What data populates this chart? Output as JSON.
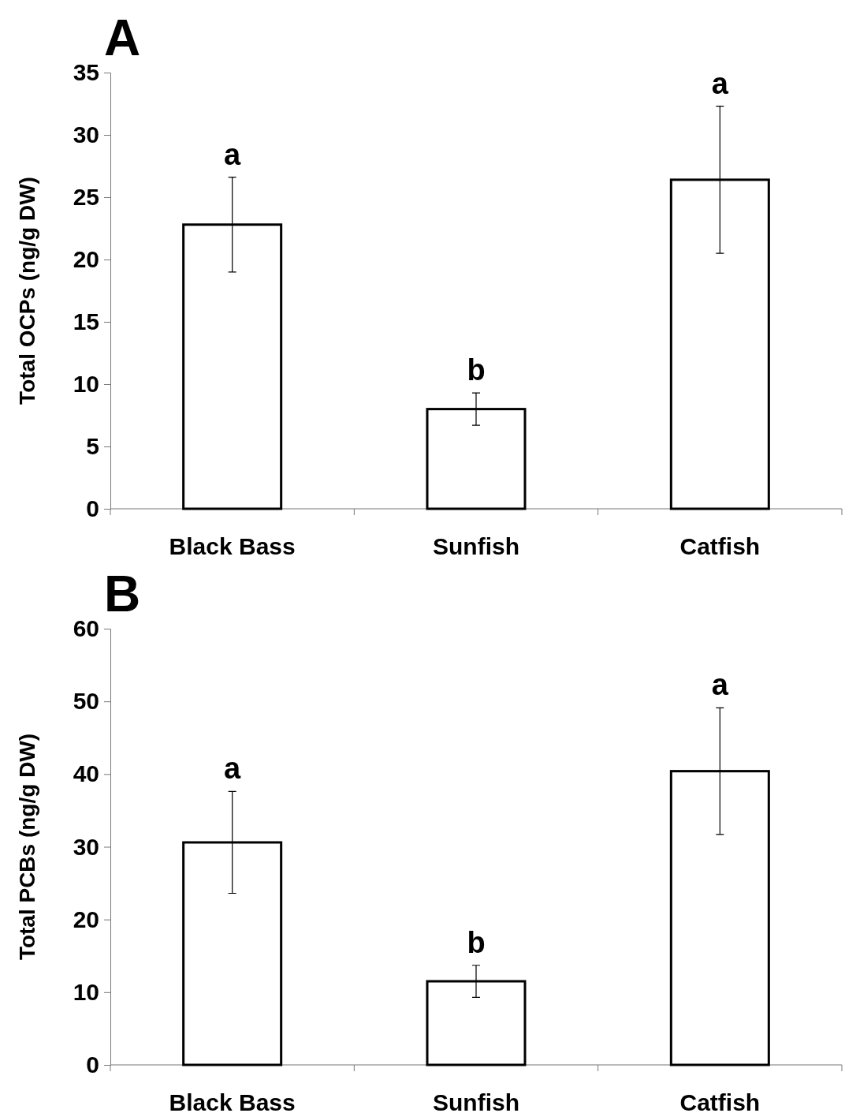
{
  "chart_data": [
    {
      "type": "bar",
      "title": "A",
      "ylabel": "Total OCPs (ng/g DW)",
      "categories": [
        "Black Bass",
        "Sunfish",
        "Catfish"
      ],
      "values": [
        22.8,
        8.0,
        26.4
      ],
      "errors": [
        3.8,
        1.3,
        5.9
      ],
      "color": "#ffffff",
      "ylim": [
        0,
        35
      ],
      "yticks": [
        0,
        5,
        10,
        15,
        20,
        25,
        30,
        35
      ],
      "grid": false,
      "annotations": [
        {
          "text": "a",
          "x": "Black Bass",
          "y": 26.6
        },
        {
          "text": "b",
          "x": "Sunfish",
          "y": 9.3
        },
        {
          "text": "a",
          "x": "Catfish",
          "y": 32.3
        }
      ]
    },
    {
      "type": "bar",
      "title": "B",
      "ylabel": "Total PCBs (ng/g DW)",
      "categories": [
        "Black Bass",
        "Sunfish",
        "Catfish"
      ],
      "values": [
        30.6,
        11.5,
        40.4
      ],
      "errors": [
        7.0,
        2.2,
        8.7
      ],
      "color": "#ffffff",
      "ylim": [
        0,
        60
      ],
      "yticks": [
        0,
        10,
        20,
        30,
        40,
        50,
        60
      ],
      "grid": false,
      "annotations": [
        {
          "text": "a",
          "x": "Black Bass",
          "y": 37.6
        },
        {
          "text": "b",
          "x": "Sunfish",
          "y": 13.7
        },
        {
          "text": "a",
          "x": "Catfish",
          "y": 49.1
        }
      ]
    }
  ]
}
